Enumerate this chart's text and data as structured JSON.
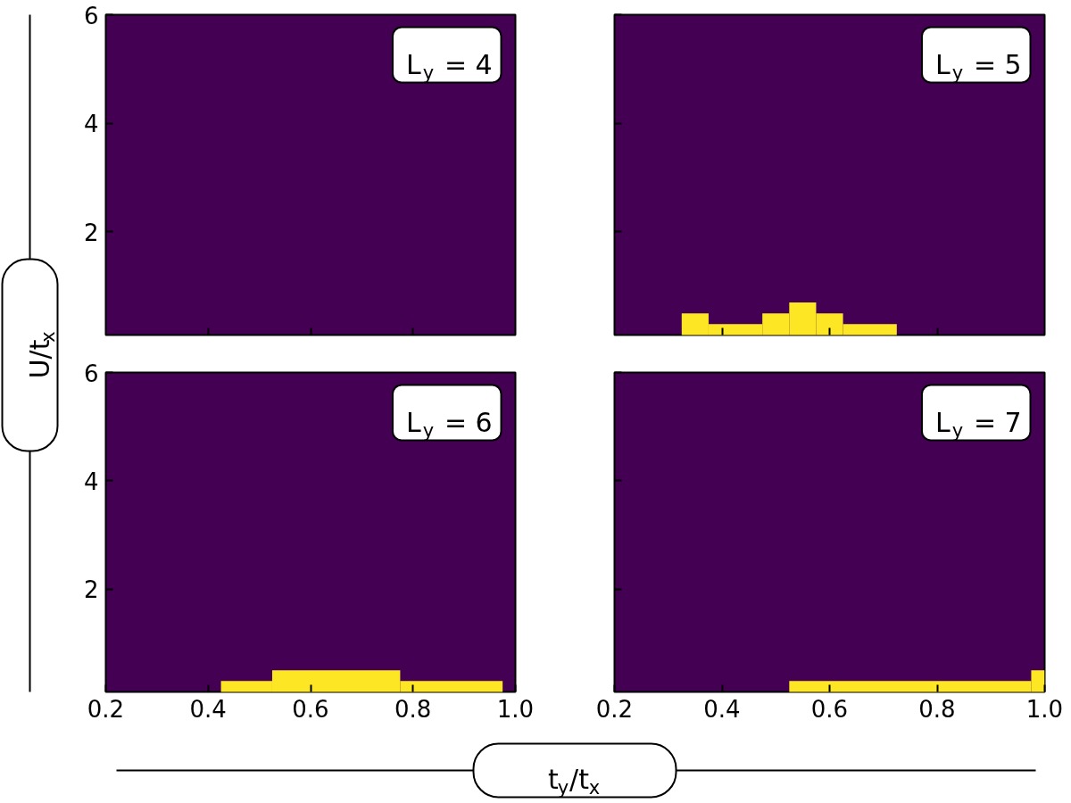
{
  "chart_data": [
    {
      "type": "histogram",
      "color": "#fde725",
      "xlim": [
        0.2,
        1.0
      ],
      "ylim": [
        0.1,
        6
      ],
      "xticks": [
        0.4,
        0.6,
        0.8
      ],
      "yticks": [
        2,
        4,
        6
      ],
      "tick_labels": "y",
      "grid": false,
      "annotations": [
        "L$_{y}$ = 4"
      ],
      "ylabel": "U/t$_{x}$"
    },
    {
      "type": "histogram",
      "bins": [
        0.325,
        0.375,
        0.475,
        0.525,
        0.575,
        0.625,
        0.725
      ],
      "values": [
        0.5,
        0.3,
        0.5,
        0.7,
        0.5,
        0.3
      ],
      "color": "#fde725",
      "xlim": [
        0.2,
        1.0
      ],
      "ylim": [
        0.1,
        6
      ],
      "xticks": [
        0.4,
        0.6,
        0.8
      ],
      "yticks": [
        2,
        4,
        6
      ],
      "tick_labels": false,
      "grid": false,
      "annotations": [
        "L$_{y}$ = 5"
      ]
    },
    {
      "type": "histogram",
      "bins": [
        0.425,
        0.525,
        0.775,
        0.975
      ],
      "values": [
        0.3,
        0.5,
        0.3
      ],
      "color": "#fde725",
      "xlim": [
        0.2,
        1.0
      ],
      "ylim": [
        0.1,
        6
      ],
      "xticks": [
        "0.2",
        0.4,
        0.6,
        0.8,
        "1.0"
      ],
      "yticks": [
        2,
        4,
        6
      ],
      "grid": false,
      "annotations": [
        "L$_{y}$ = 6"
      ],
      "xlabel": "t$_{y}$/t$_{x}$"
    },
    {
      "type": "histogram",
      "bins": [
        0.525,
        0.975,
        1.0
      ],
      "values": [
        0.3,
        0.5
      ],
      "color": "#fde725",
      "xlim": [
        0.2,
        1.0
      ],
      "ylim": [
        0.1,
        6
      ],
      "xticks": [
        "0.2",
        0.4,
        0.6,
        0.8,
        "1.0"
      ],
      "yticks": [
        2,
        4,
        6
      ],
      "tick_labels": "x",
      "grid": false,
      "annotations": [
        "L$_{y}$ = 7"
      ]
    }
  ]
}
